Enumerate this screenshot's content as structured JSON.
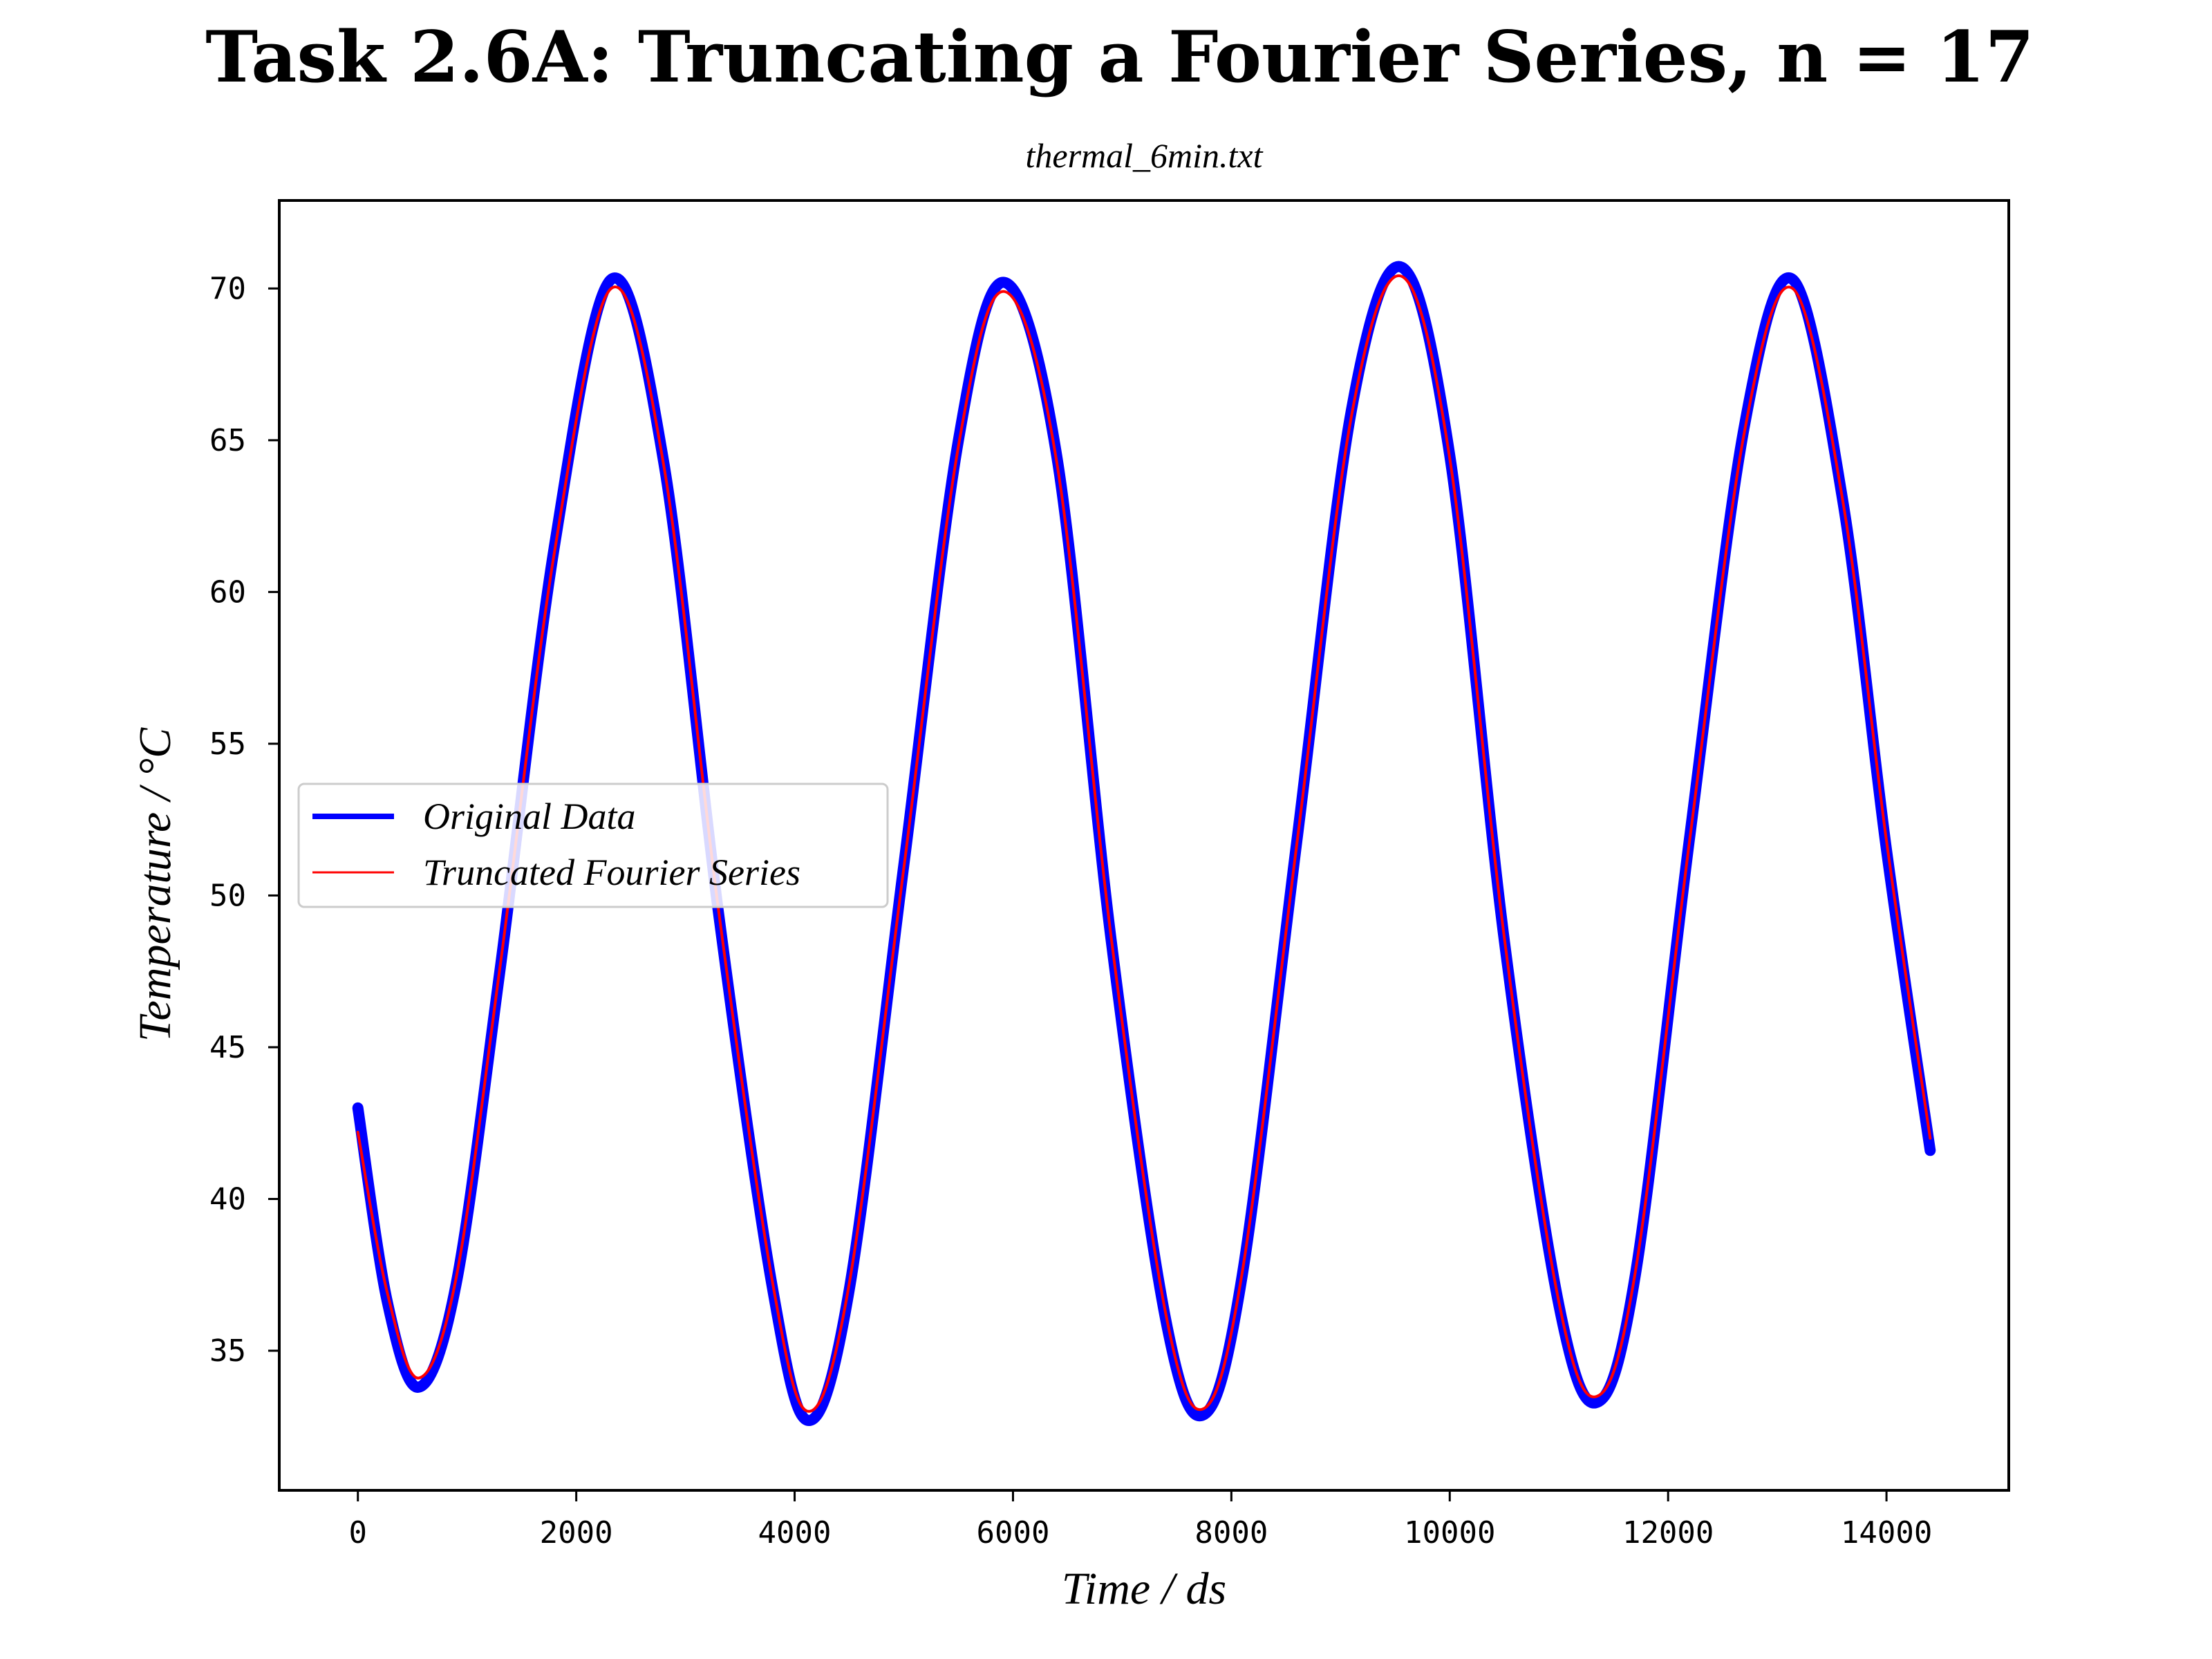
{
  "colors": {
    "original": "#0000ff",
    "truncated": "#ff0000",
    "axes": "#000000",
    "background": "#ffffff"
  },
  "chart_data": {
    "type": "line",
    "title": "Task 2.6A: Truncating a Fourier Series, n = 17",
    "subtitle": "thermal_6min.txt",
    "xlabel": "Time / ds",
    "ylabel": "Temperature / °C",
    "xlim": [
      -720,
      15120
    ],
    "ylim": [
      30.4,
      72.9
    ],
    "xticks": [
      0,
      2000,
      4000,
      6000,
      8000,
      10000,
      12000,
      14000
    ],
    "xtick_labels": [
      "0",
      "2000",
      "4000",
      "6000",
      "8000",
      "10000",
      "12000",
      "14000"
    ],
    "yticks": [
      35,
      40,
      45,
      50,
      55,
      60,
      65,
      70
    ],
    "ytick_labels": [
      "35",
      "40",
      "45",
      "50",
      "55",
      "60",
      "65",
      "70"
    ],
    "grid": false,
    "legend_placement": "center-left",
    "series": [
      {
        "name": "Original Data",
        "color": "#0000ff",
        "x": [
          0,
          270,
          560,
          900,
          1300,
          1800,
          2320,
          2800,
          3300,
          3800,
          4130,
          4500,
          5000,
          5500,
          5920,
          6400,
          6900,
          7400,
          7750,
          8100,
          8600,
          9100,
          9560,
          10000,
          10500,
          11000,
          11350,
          11700,
          12200,
          12700,
          13140,
          13600,
          14000,
          14400
        ],
        "y": [
          43.0,
          36.6,
          33.8,
          37.2,
          47.5,
          61.5,
          70.3,
          64.3,
          49.5,
          37.0,
          32.7,
          37.0,
          51.0,
          65.0,
          70.2,
          64.5,
          48.5,
          36.0,
          32.9,
          37.5,
          51.8,
          66.0,
          70.7,
          64.5,
          48.5,
          36.5,
          33.3,
          37.5,
          52.0,
          65.5,
          70.3,
          63.0,
          51.5,
          41.6
        ]
      },
      {
        "name": "Truncated Fourier Series",
        "color": "#ff0000",
        "x": [
          0,
          270,
          560,
          900,
          1300,
          1800,
          2320,
          2800,
          3300,
          3800,
          4130,
          4500,
          5000,
          5500,
          5920,
          6400,
          6900,
          7400,
          7750,
          8100,
          8600,
          9100,
          9560,
          10000,
          10500,
          11000,
          11350,
          11700,
          12200,
          12700,
          13140,
          13600,
          14000,
          14400
        ],
        "y": [
          42.2,
          36.9,
          34.1,
          37.4,
          47.6,
          61.3,
          70.0,
          64.2,
          49.6,
          37.2,
          33.0,
          37.2,
          50.9,
          64.8,
          69.9,
          64.3,
          48.6,
          36.2,
          33.1,
          37.6,
          51.7,
          65.8,
          70.4,
          64.4,
          48.6,
          36.6,
          33.5,
          37.6,
          51.9,
          65.3,
          70.0,
          63.0,
          51.8,
          42.0
        ]
      }
    ]
  }
}
